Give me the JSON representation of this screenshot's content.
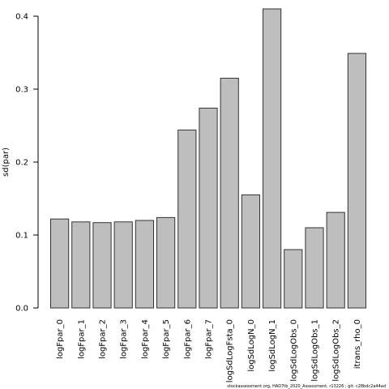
{
  "chart_data": {
    "type": "bar",
    "ylabel": "sd(par)",
    "xlabel": "",
    "title": "",
    "ylim": [
      0,
      0.4
    ],
    "yticks": [
      "0.0",
      "0.1",
      "0.2",
      "0.3",
      "0.4"
    ],
    "ytick_values": [
      0,
      0.1,
      0.2,
      0.3,
      0.4
    ],
    "categories": [
      "logFpar_0",
      "logFpar_1",
      "logFpar_2",
      "logFpar_3",
      "logFpar_4",
      "logFpar_5",
      "logFpar_6",
      "logFpar_7",
      "logSdLogFsta_0",
      "logSdLogN_0",
      "logSdLogN_1",
      "logSdLogObs_0",
      "logSdLogObs_1",
      "logSdLogObs_2",
      "itrans_rho_0"
    ],
    "values": [
      0.122,
      0.118,
      0.117,
      0.118,
      0.12,
      0.124,
      0.244,
      0.274,
      0.315,
      0.155,
      0.41,
      0.08,
      0.11,
      0.131,
      0.349
    ],
    "bar_fill": "#bebebe",
    "bar_stroke": "#333333",
    "grid": false,
    "legend": "none"
  },
  "footer": "stockassessment.org, HAD7tb_2020_Assessment, r13226 ; git: c28bdc2a44ad"
}
